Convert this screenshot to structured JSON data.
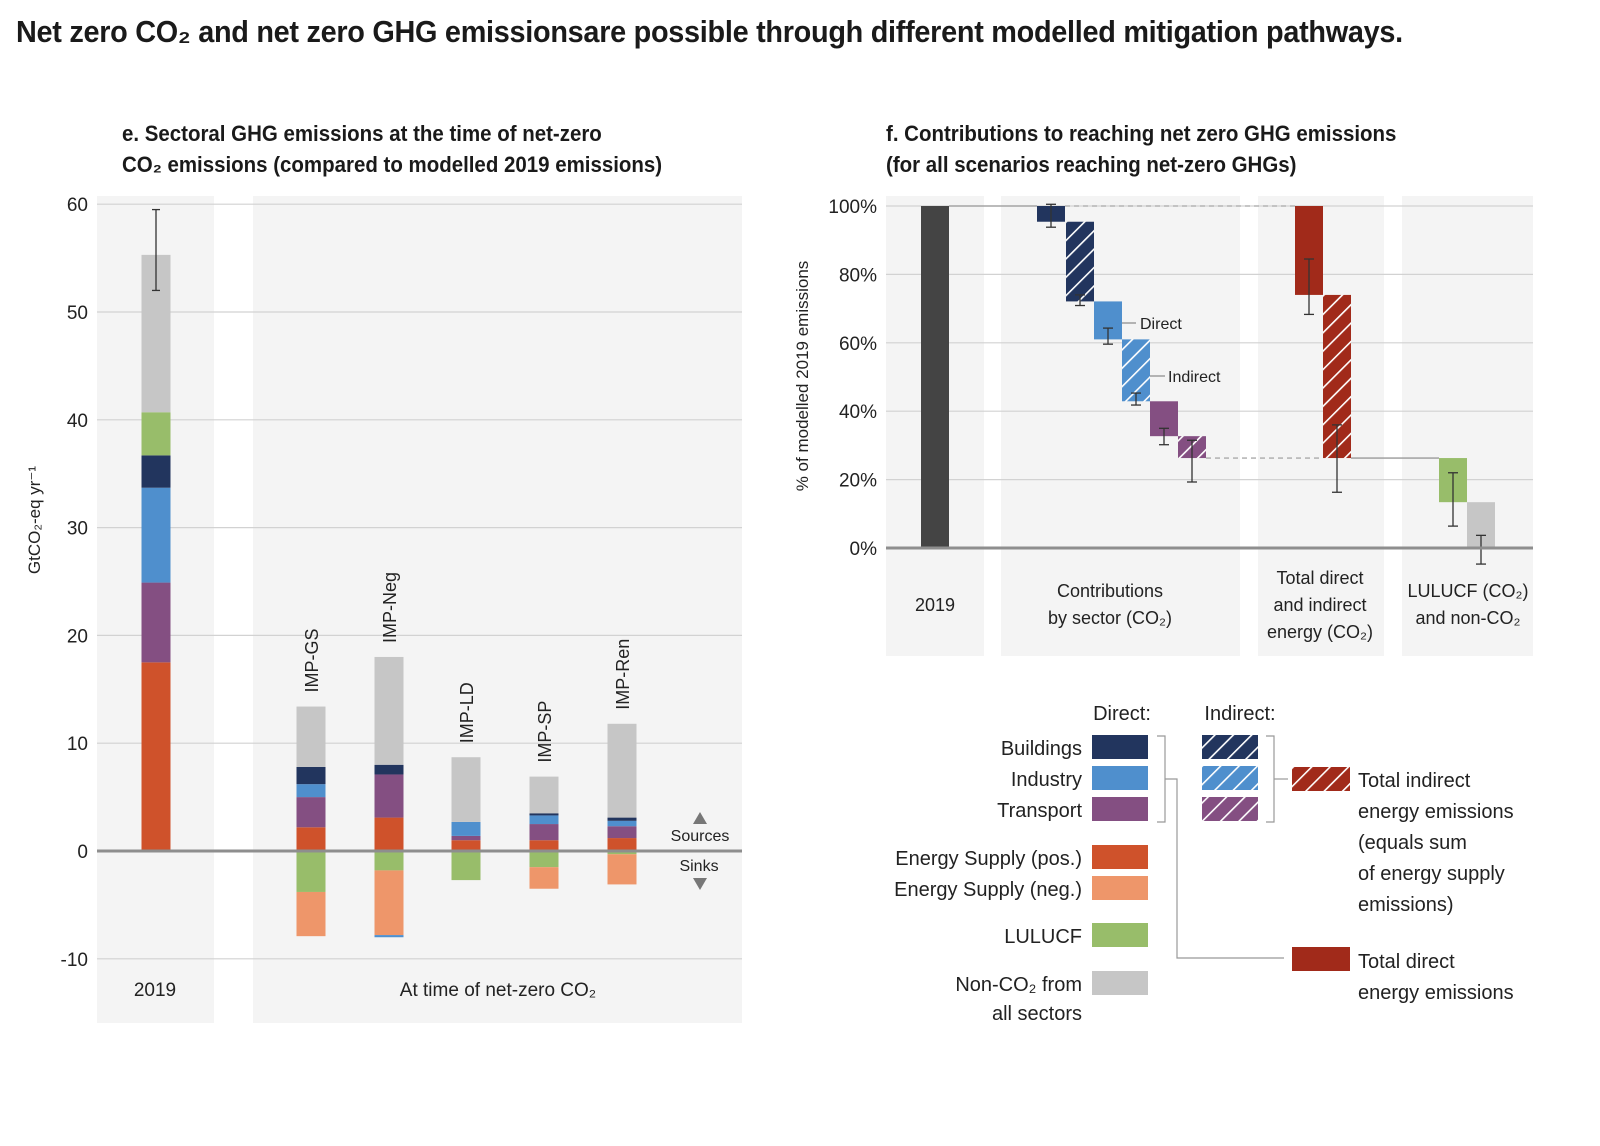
{
  "main_title": "Net zero CO₂ and net zero GHG emissionsare possible through different modelled mitigation pathways.",
  "colors": {
    "buildings": "#22355e",
    "industry": "#4f8fcd",
    "transport": "#844f82",
    "energy_pos": "#cf522b",
    "energy_neg": "#ee966a",
    "lulucf": "#98bd6a",
    "nonco2": "#c6c6c6",
    "total_energy": "#a12a1a",
    "bar_2019": "#444444",
    "panel_bg": "#f4f4f4",
    "grid": "#d2d2d2",
    "axis": "#8e8e8e"
  },
  "chart_data": [
    {
      "id": "e",
      "type": "bar",
      "stacked": true,
      "title_line1": "e. Sectoral GHG emissions at the time of net-zero",
      "title_line2": "CO₂ emissions (compared to modelled 2019 emissions)",
      "ylabel": "GtCO₂-eq yr⁻¹",
      "ylim": [
        -15,
        60
      ],
      "yticks": [
        -10,
        0,
        10,
        20,
        30,
        40,
        50,
        60
      ],
      "grid": true,
      "group_labels": [
        "2019",
        "At time of net-zero CO₂"
      ],
      "sources_label": "Sources",
      "sinks_label": "Sinks",
      "categories": [
        "2019",
        "IMP-GS",
        "IMP-Neg",
        "IMP-LD",
        "IMP-SP",
        "IMP-Ren"
      ],
      "series": [
        {
          "name": "Energy Supply (pos.)",
          "key": "energy_pos",
          "values": [
            17.5,
            2.2,
            3.1,
            1.0,
            1.0,
            1.2
          ]
        },
        {
          "name": "Transport",
          "key": "transport",
          "values": [
            7.4,
            2.8,
            4.0,
            0.4,
            1.5,
            1.1
          ]
        },
        {
          "name": "Industry",
          "key": "industry",
          "values": [
            8.8,
            1.2,
            0.0,
            1.3,
            0.8,
            0.5
          ]
        },
        {
          "name": "Buildings",
          "key": "buildings",
          "values": [
            3.0,
            1.6,
            0.9,
            0.0,
            0.2,
            0.3
          ]
        },
        {
          "name": "LULUCF",
          "key": "lulucf",
          "values": [
            4.0,
            -3.8,
            -1.8,
            -2.7,
            -1.5,
            -0.3
          ]
        },
        {
          "name": "Non-CO₂ from all sectors",
          "key": "nonco2",
          "values": [
            14.6,
            5.6,
            10.0,
            6.0,
            3.4,
            8.7
          ]
        },
        {
          "name": "Energy Supply (neg.)",
          "key": "energy_neg",
          "values": [
            0.0,
            -4.1,
            -6.0,
            0.0,
            -2.0,
            -2.8
          ]
        },
        {
          "name": "Industry (neg.)",
          "key": "industry",
          "values": [
            0.0,
            0.0,
            -0.2,
            0.0,
            0.0,
            0.0
          ]
        }
      ],
      "error_bar_2019": [
        52.0,
        59.5
      ]
    },
    {
      "id": "f",
      "type": "bar",
      "subtype": "waterfall",
      "title_line1": "f. Contributions to reaching net zero GHG emissions",
      "title_line2": "(for all scenarios reaching net-zero GHGs)",
      "ylabel": "% of modelled 2019 emissions",
      "ylim": [
        0,
        100
      ],
      "yticks": [
        0,
        20,
        40,
        60,
        80,
        100
      ],
      "ytick_suffix": "%",
      "grid": true,
      "group_labels": [
        [
          "2019"
        ],
        [
          "Contributions",
          "by sector (CO₂)"
        ],
        [
          "Total direct",
          "and indirect",
          "energy (CO₂)"
        ],
        [
          "LULUCF (CO₂)",
          "and non-CO₂"
        ]
      ],
      "annotations": {
        "direct": "Direct",
        "indirect": "Indirect"
      },
      "steps": [
        {
          "name": "2019",
          "key": "bar_2019",
          "from": 0,
          "to": 100,
          "hatched": false
        },
        {
          "name": "Buildings direct",
          "key": "buildings",
          "from": 100,
          "to": 95.4,
          "hatched": false,
          "err": [
            93.8,
            100.5
          ]
        },
        {
          "name": "Buildings indirect",
          "key": "buildings",
          "from": 95.4,
          "to": 72.1,
          "hatched": true,
          "err": [
            70.9,
            74.0
          ]
        },
        {
          "name": "Industry direct",
          "key": "industry",
          "from": 72.1,
          "to": 61.0,
          "hatched": false,
          "err": [
            59.6,
            64.3
          ]
        },
        {
          "name": "Industry indirect",
          "key": "industry",
          "from": 61.0,
          "to": 42.9,
          "hatched": true,
          "err": [
            41.8,
            45.3
          ]
        },
        {
          "name": "Transport direct",
          "key": "transport",
          "from": 42.9,
          "to": 32.7,
          "hatched": false,
          "err": [
            30.2,
            35.0
          ]
        },
        {
          "name": "Transport indirect",
          "key": "transport",
          "from": 32.7,
          "to": 26.3,
          "hatched": true,
          "err": [
            19.3,
            31.5
          ]
        },
        {
          "name": "Total direct energy",
          "key": "total_energy",
          "from": 100,
          "to": 74.0,
          "hatched": false,
          "err": [
            68.3,
            84.5
          ]
        },
        {
          "name": "Total indirect energy",
          "key": "total_energy",
          "from": 74.0,
          "to": 26.3,
          "hatched": true,
          "err": [
            16.3,
            36.0
          ]
        },
        {
          "name": "LULUCF",
          "key": "lulucf",
          "from": 26.3,
          "to": 13.4,
          "hatched": false,
          "err": [
            6.4,
            22.0
          ]
        },
        {
          "name": "Non-CO₂",
          "key": "nonco2",
          "from": 13.4,
          "to": 0,
          "hatched": false,
          "err": [
            -4.7,
            3.7
          ]
        }
      ]
    }
  ],
  "legend": {
    "direct_header": "Direct:",
    "indirect_header": "Indirect:",
    "sector_rows": [
      {
        "label": "Buildings",
        "key": "buildings"
      },
      {
        "label": "Industry",
        "key": "industry"
      },
      {
        "label": "Transport",
        "key": "transport"
      }
    ],
    "other_rows": [
      {
        "label": "Energy Supply (pos.)",
        "key": "energy_pos"
      },
      {
        "label": "Energy Supply (neg.)",
        "key": "energy_neg"
      },
      {
        "label": "LULUCF",
        "key": "lulucf"
      },
      {
        "label": "Non-CO₂ from",
        "label2": "all sectors",
        "key": "nonco2"
      }
    ],
    "total_indirect": [
      "Total indirect",
      "energy emissions",
      "(equals sum",
      "of energy supply",
      "emissions)"
    ],
    "total_direct": [
      "Total direct",
      "energy emissions"
    ]
  }
}
